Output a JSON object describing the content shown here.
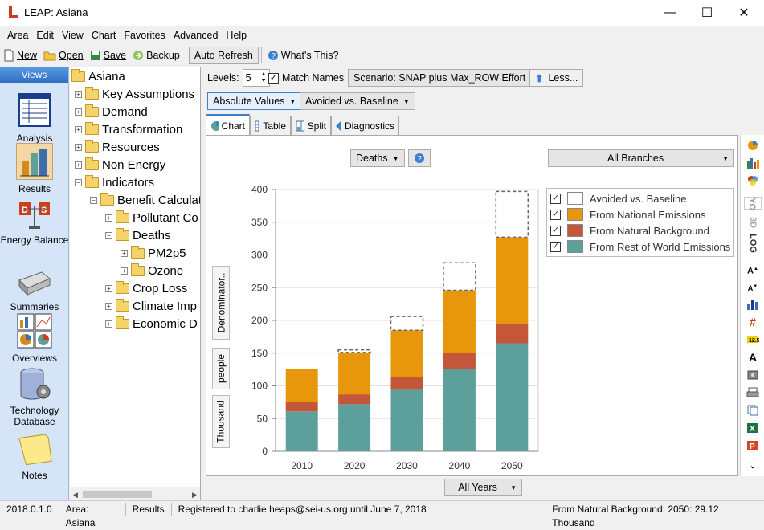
{
  "window": {
    "title": "LEAP: Asiana",
    "min": "—",
    "max": "☐",
    "close": "✕"
  },
  "menu": [
    "Area",
    "Edit",
    "View",
    "Chart",
    "Favorites",
    "Advanced",
    "Help"
  ],
  "toolbar": {
    "new": "New",
    "open": "Open",
    "save": "Save",
    "backup": "Backup",
    "auto_refresh": "Auto Refresh",
    "whats_this": "What's This?"
  },
  "views": {
    "header": "Views",
    "items": [
      "Analysis",
      "Results",
      "Energy Balance",
      "Summaries",
      "Overviews",
      "Technology Database",
      "Notes"
    ]
  },
  "tree": {
    "root": "Asiana",
    "nodes": [
      "Key Assumptions",
      "Demand",
      "Transformation",
      "Resources",
      "Non Energy",
      "Indicators",
      "Benefit Calculat",
      "Pollutant Co",
      "Deaths",
      "PM2p5",
      "Ozone",
      "Crop Loss",
      "Climate Imp",
      "Economic D"
    ]
  },
  "controls": {
    "levels_label": "Levels:",
    "levels_value": "5",
    "match_names": "Match Names",
    "scenario": "Scenario: SNAP plus Max_ROW Effort",
    "less": "Less...",
    "absolute_values": "Absolute Values",
    "avoided": "Avoided vs. Baseline"
  },
  "tabs": [
    "Chart",
    "Table",
    "Split",
    "Diagnostics"
  ],
  "chart_controls": {
    "variable": "Deaths",
    "help": "?",
    "branches": "All Branches",
    "years": "All Years"
  },
  "unit_labels": [
    "Denominator..",
    "people",
    "Thousand"
  ],
  "right_icons": [
    "YO",
    "3D",
    "LOG"
  ],
  "colors": {
    "national": "#e8960c",
    "background": "#c4563a",
    "row": "#5c9f9b",
    "avoided": "#ffffff",
    "accent": "#3c7fd1"
  },
  "chart_data": {
    "type": "bar",
    "stacked": true,
    "categories": [
      "2010",
      "2020",
      "2030",
      "2040",
      "2050"
    ],
    "series": [
      {
        "name": "From Rest of World Emissions",
        "values": [
          61,
          72,
          94,
          126,
          165
        ]
      },
      {
        "name": "From Natural Background",
        "values": [
          14,
          15,
          19,
          24,
          29.12
        ]
      },
      {
        "name": "From National Emissions",
        "values": [
          51,
          64,
          72,
          96,
          133
        ]
      },
      {
        "name": "Avoided vs. Baseline",
        "values": [
          0,
          4,
          21,
          42,
          70
        ]
      }
    ],
    "ylim": [
      0,
      400
    ],
    "yticks": [
      "0",
      "50",
      "100",
      "150",
      "200",
      "250",
      "300",
      "350",
      "400"
    ],
    "grid": true,
    "legend": "top-right"
  },
  "legend_items": [
    "Avoided vs. Baseline",
    "From National Emissions",
    "From Natural Background",
    "From Rest of World Emissions"
  ],
  "status": {
    "version": "2018.0.1.0",
    "area": "Area: Asiana",
    "view": "Results",
    "registered": "Registered to charlie.heaps@sei-us.org until June 7, 2018",
    "info": "From Natural Background: 2050: 29.12 Thousand"
  }
}
